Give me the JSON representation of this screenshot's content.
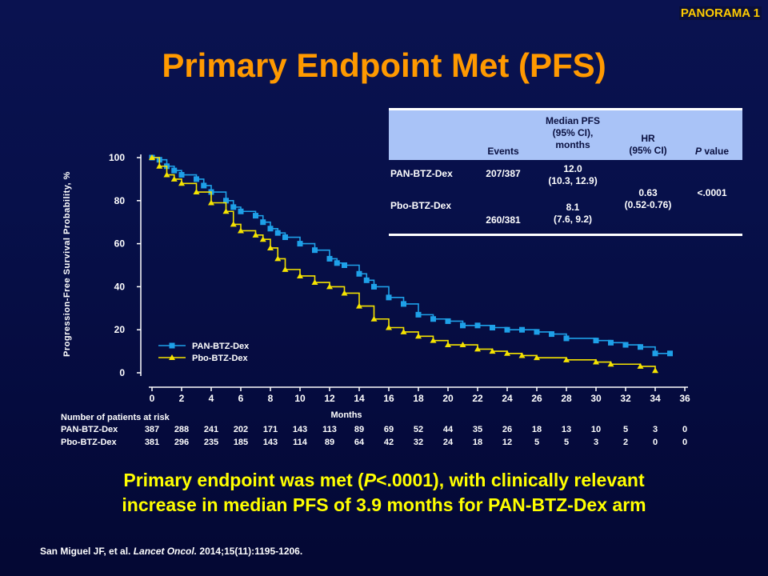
{
  "header": {
    "brand": "PANORAMA 1",
    "title": "Primary Endpoint Met (PFS)"
  },
  "chart_data": {
    "type": "line",
    "xlabel": "Months",
    "ylabel": "Progression-Free Survival Probability, %",
    "xlim": [
      0,
      36
    ],
    "ylim": [
      0,
      100
    ],
    "xticks": [
      "0",
      "2",
      "4",
      "6",
      "8",
      "10",
      "12",
      "14",
      "16",
      "18",
      "20",
      "22",
      "24",
      "26",
      "28",
      "30",
      "32",
      "34",
      "36"
    ],
    "yticks": [
      "0",
      "20",
      "40",
      "60",
      "80",
      "100"
    ],
    "grid": false,
    "legend_position": "bottom-left",
    "series": [
      {
        "name": "PAN-BTZ-Dex",
        "color": "#1ea0e8",
        "marker": "square",
        "points": [
          [
            0,
            100
          ],
          [
            0.5,
            99
          ],
          [
            1,
            96
          ],
          [
            1.5,
            94
          ],
          [
            2,
            92
          ],
          [
            3,
            90
          ],
          [
            3.5,
            87
          ],
          [
            4,
            84
          ],
          [
            5,
            80
          ],
          [
            5.5,
            77
          ],
          [
            6,
            75
          ],
          [
            7,
            73
          ],
          [
            7.5,
            70
          ],
          [
            8,
            67
          ],
          [
            8.5,
            65
          ],
          [
            9,
            63
          ],
          [
            10,
            60
          ],
          [
            11,
            57
          ],
          [
            12,
            53
          ],
          [
            12.5,
            51
          ],
          [
            13,
            50
          ],
          [
            14,
            46
          ],
          [
            14.5,
            43
          ],
          [
            15,
            40
          ],
          [
            16,
            35
          ],
          [
            17,
            32
          ],
          [
            18,
            27
          ],
          [
            19,
            25
          ],
          [
            20,
            24
          ],
          [
            21,
            22
          ],
          [
            22,
            22
          ],
          [
            23,
            21
          ],
          [
            24,
            20
          ],
          [
            25,
            20
          ],
          [
            26,
            19
          ],
          [
            27,
            18
          ],
          [
            28,
            16
          ],
          [
            30,
            15
          ],
          [
            31,
            14
          ],
          [
            32,
            13
          ],
          [
            33,
            12
          ],
          [
            34,
            9
          ],
          [
            35,
            9
          ]
        ]
      },
      {
        "name": "Pbo-BTZ-Dex",
        "color": "#f5e300",
        "marker": "triangle",
        "points": [
          [
            0,
            100
          ],
          [
            0.5,
            96
          ],
          [
            1,
            92
          ],
          [
            1.5,
            90
          ],
          [
            2,
            88
          ],
          [
            3,
            84
          ],
          [
            4,
            79
          ],
          [
            5,
            75
          ],
          [
            5.5,
            69
          ],
          [
            6,
            66
          ],
          [
            7,
            64
          ],
          [
            7.5,
            62
          ],
          [
            8,
            58
          ],
          [
            8.5,
            53
          ],
          [
            9,
            48
          ],
          [
            10,
            45
          ],
          [
            11,
            42
          ],
          [
            12,
            40
          ],
          [
            13,
            37
          ],
          [
            14,
            31
          ],
          [
            15,
            25
          ],
          [
            16,
            21
          ],
          [
            17,
            19
          ],
          [
            18,
            17
          ],
          [
            19,
            15
          ],
          [
            20,
            13
          ],
          [
            21,
            13
          ],
          [
            22,
            11
          ],
          [
            23,
            10
          ],
          [
            24,
            9
          ],
          [
            25,
            8
          ],
          [
            26,
            7
          ],
          [
            28,
            6
          ],
          [
            30,
            5
          ],
          [
            31,
            4
          ],
          [
            33,
            3
          ],
          [
            34,
            1
          ]
        ]
      }
    ],
    "at_risk": {
      "title": "Number of patients at risk",
      "months": [
        0,
        2,
        4,
        6,
        8,
        10,
        12,
        14,
        16,
        18,
        20,
        22,
        24,
        26,
        28,
        30,
        32,
        34,
        36
      ],
      "rows": [
        {
          "label": "PAN-BTZ-Dex",
          "values": [
            "387",
            "288",
            "241",
            "202",
            "171",
            "143",
            "113",
            "89",
            "69",
            "52",
            "44",
            "35",
            "26",
            "18",
            "13",
            "10",
            "5",
            "3",
            "0"
          ]
        },
        {
          "label": "Pbo-BTZ-Dex",
          "values": [
            "381",
            "296",
            "235",
            "185",
            "143",
            "114",
            "89",
            "64",
            "42",
            "32",
            "24",
            "18",
            "12",
            "5",
            "5",
            "3",
            "2",
            "0",
            "0"
          ]
        }
      ]
    }
  },
  "stats_table": {
    "headers": {
      "events": "Events",
      "median_l1": "Median PFS",
      "median_l2": "(95% CI),",
      "median_l3": "months",
      "hr_l1": "HR",
      "hr_l2": "(95% CI)",
      "p_italic": "P",
      "p_rest": " value"
    },
    "rows": [
      {
        "arm": "PAN-BTZ-Dex",
        "events": "207/387",
        "median_l1": "12.0",
        "median_l2": "(10.3, 12.9)"
      },
      {
        "arm": "Pbo-BTZ-Dex",
        "events": "260/381",
        "median_l1": "8.1",
        "median_l2": "(7.6,  9.2)"
      }
    ],
    "hr_l1": "0.63",
    "hr_l2": "(0.52-0.76)",
    "p_value": "<.0001"
  },
  "summary": {
    "line1_pre": "Primary endpoint was met (",
    "line1_italic": "P",
    "line1_post": "<.0001), with clinically relevant",
    "line2": "increase in median PFS of 3.9 months for PAN-BTZ-Dex arm"
  },
  "citation": {
    "authors": "San Miguel JF, et al. ",
    "journal": "Lancet Oncol.",
    "details": " 2014;15(11):1195-1206."
  }
}
